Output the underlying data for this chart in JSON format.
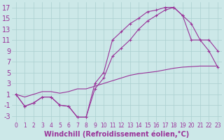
{
  "xlabel": "Windchill (Refroidissement éolien,°C)",
  "background_color": "#cce8e8",
  "grid_color": "#aacfcf",
  "line_color": "#993399",
  "xlim": [
    -0.5,
    23.5
  ],
  "ylim": [
    -4,
    18
  ],
  "xticks": [
    0,
    1,
    2,
    3,
    4,
    5,
    6,
    7,
    8,
    9,
    10,
    11,
    12,
    13,
    14,
    15,
    16,
    17,
    18,
    19,
    20,
    21,
    22,
    23
  ],
  "yticks": [
    -3,
    -1,
    1,
    3,
    5,
    7,
    9,
    11,
    13,
    15,
    17
  ],
  "line1_x": [
    0,
    1,
    2,
    3,
    4,
    5,
    6,
    7,
    8,
    9,
    10,
    11,
    12,
    13,
    14,
    15,
    16,
    17,
    18,
    19,
    20,
    21,
    22,
    23
  ],
  "line1_y": [
    1,
    -1.2,
    -0.6,
    0.5,
    0.5,
    -1.0,
    -1.2,
    -3.2,
    -3.2,
    3,
    5,
    11,
    12.5,
    14,
    15,
    16.2,
    16.5,
    17,
    17,
    15.5,
    11,
    11,
    11,
    9
  ],
  "line2_x": [
    0,
    1,
    2,
    3,
    4,
    5,
    6,
    7,
    8,
    9,
    10,
    11,
    12,
    13,
    14,
    15,
    16,
    17,
    18,
    19,
    20,
    21,
    22,
    23
  ],
  "line2_y": [
    1,
    -1.2,
    -0.6,
    0.5,
    0.5,
    -1.0,
    -1.2,
    -3.2,
    -3.2,
    2,
    4,
    8,
    9.5,
    11,
    13,
    14.5,
    15.5,
    16.5,
    17,
    15.5,
    14,
    11,
    9,
    6
  ],
  "line3_x": [
    0,
    1,
    2,
    3,
    4,
    5,
    6,
    7,
    8,
    9,
    10,
    11,
    12,
    13,
    14,
    15,
    16,
    17,
    18,
    19,
    20,
    21,
    22,
    23
  ],
  "line3_y": [
    1,
    0.5,
    1,
    1.5,
    1.5,
    1.2,
    1.5,
    2,
    2,
    2.5,
    3,
    3.5,
    4,
    4.5,
    4.8,
    5,
    5.2,
    5.5,
    5.8,
    6,
    6.1,
    6.2,
    6.2,
    6.2
  ],
  "fontsize_xlabel": 7,
  "fontsize_yticks": 7,
  "fontsize_xticks": 5.5,
  "marker": "+"
}
